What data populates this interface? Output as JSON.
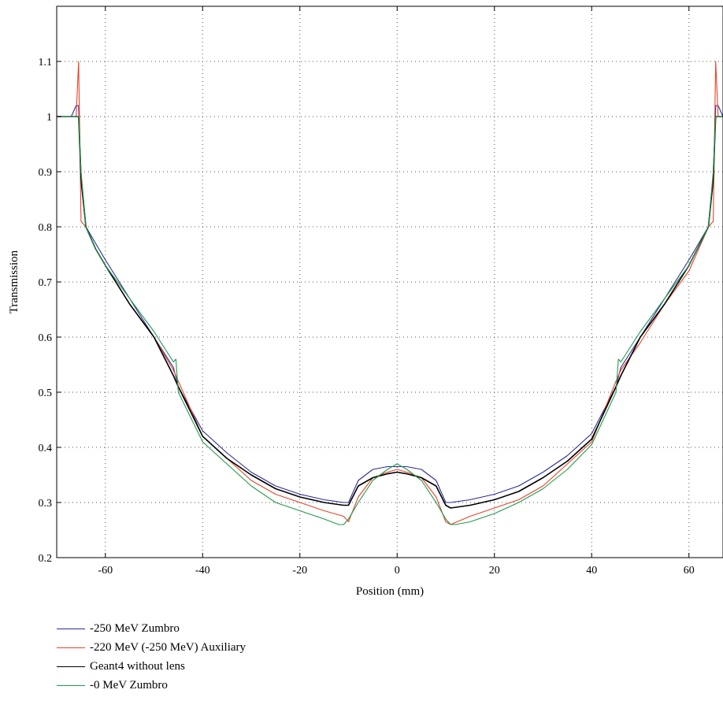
{
  "chart_data": {
    "type": "line",
    "title": "",
    "xlabel": "Position (mm)",
    "ylabel": "Transmission",
    "xlim": [
      -70,
      67
    ],
    "ylim": [
      0.2,
      1.2
    ],
    "xticks": [
      -60,
      -40,
      -20,
      0,
      20,
      40,
      60
    ],
    "xtick_labels": [
      "-60",
      "-40",
      "-20",
      "0",
      "20",
      "40",
      "60"
    ],
    "yticks": [
      0.2,
      0.3,
      0.4,
      0.5,
      0.6,
      0.7,
      0.8,
      0.9,
      1.0,
      1.1
    ],
    "ytick_labels": [
      "0.2",
      "0.3",
      "0.4",
      "0.5",
      "0.6",
      "0.7",
      "0.8",
      "0.9",
      "1",
      "1.1"
    ],
    "grid": true,
    "legend_position": "bottom",
    "series": [
      {
        "name": "-250 MeV Zumbro",
        "color": "#2b2b9a",
        "x": [
          -70,
          -67,
          -66,
          -65.5,
          -65,
          -64,
          -62,
          -60,
          -55,
          -50,
          -46,
          -45,
          -40,
          -35,
          -30,
          -25,
          -20,
          -15,
          -11,
          -10,
          -8,
          -5,
          -2,
          0,
          2,
          5,
          8,
          10,
          11,
          15,
          20,
          25,
          30,
          35,
          40,
          45,
          46,
          50,
          55,
          60,
          64,
          65,
          65.5,
          66,
          67
        ],
        "y": [
          1.0,
          1.0,
          1.02,
          1.02,
          0.88,
          0.8,
          0.77,
          0.74,
          0.67,
          0.6,
          0.545,
          0.51,
          0.43,
          0.39,
          0.355,
          0.33,
          0.315,
          0.305,
          0.3,
          0.3,
          0.34,
          0.36,
          0.365,
          0.365,
          0.365,
          0.36,
          0.34,
          0.3,
          0.3,
          0.305,
          0.315,
          0.33,
          0.355,
          0.385,
          0.425,
          0.51,
          0.545,
          0.6,
          0.67,
          0.74,
          0.8,
          0.88,
          1.02,
          1.02,
          1.0
        ]
      },
      {
        "name": "-220 MeV (-250 MeV) Auxiliary",
        "color": "#e8432a",
        "x": [
          -70,
          -67,
          -66,
          -65.5,
          -65,
          -64,
          -62,
          -60,
          -55,
          -50,
          -46,
          -45,
          -40,
          -35,
          -30,
          -25,
          -20,
          -15,
          -11,
          -10,
          -8,
          -5,
          -2,
          0,
          2,
          5,
          8,
          10,
          11,
          15,
          20,
          25,
          30,
          35,
          40,
          45,
          46,
          50,
          55,
          60,
          64,
          65,
          65.5,
          66,
          67
        ],
        "y": [
          1.0,
          1.0,
          1.0,
          1.1,
          0.81,
          0.8,
          0.76,
          0.73,
          0.66,
          0.6,
          0.54,
          0.52,
          0.42,
          0.38,
          0.34,
          0.315,
          0.3,
          0.285,
          0.275,
          0.265,
          0.31,
          0.345,
          0.355,
          0.36,
          0.355,
          0.345,
          0.31,
          0.265,
          0.26,
          0.275,
          0.29,
          0.305,
          0.33,
          0.37,
          0.41,
          0.52,
          0.54,
          0.59,
          0.66,
          0.72,
          0.8,
          0.81,
          1.1,
          1.0,
          1.0
        ]
      },
      {
        "name": "Geant4 without lens",
        "color": "#000000",
        "x": [
          -70,
          -67,
          -65.5,
          -65,
          -64,
          -62,
          -60,
          -55,
          -50,
          -46,
          -45,
          -40,
          -35,
          -30,
          -25,
          -20,
          -15,
          -11,
          -10,
          -8,
          -5,
          -2,
          0,
          2,
          5,
          8,
          10,
          11,
          15,
          20,
          25,
          30,
          35,
          40,
          45,
          46,
          50,
          55,
          60,
          64,
          65,
          65.5,
          67
        ],
        "y": [
          1.0,
          1.0,
          1.0,
          0.89,
          0.8,
          0.76,
          0.73,
          0.66,
          0.6,
          0.53,
          0.51,
          0.42,
          0.38,
          0.35,
          0.325,
          0.31,
          0.3,
          0.295,
          0.295,
          0.33,
          0.345,
          0.352,
          0.355,
          0.352,
          0.345,
          0.33,
          0.295,
          0.29,
          0.295,
          0.305,
          0.32,
          0.345,
          0.375,
          0.415,
          0.51,
          0.53,
          0.6,
          0.66,
          0.73,
          0.8,
          0.89,
          1.0,
          1.0
        ]
      },
      {
        "name": "-0 MeV Zumbro",
        "color": "#1f9a4a",
        "x": [
          -70,
          -67,
          -65.5,
          -65,
          -64,
          -62,
          -60,
          -55,
          -50,
          -46,
          -45.5,
          -45,
          -40,
          -35,
          -30,
          -25,
          -20,
          -15,
          -12,
          -11,
          -10,
          -8,
          -5,
          -2,
          0,
          2,
          5,
          8,
          10,
          11,
          12,
          15,
          20,
          25,
          30,
          35,
          40,
          45,
          45.5,
          46,
          50,
          55,
          60,
          64,
          65,
          65.5,
          67
        ],
        "y": [
          1.0,
          1.0,
          1.0,
          0.9,
          0.8,
          0.76,
          0.73,
          0.67,
          0.61,
          0.555,
          0.56,
          0.5,
          0.41,
          0.37,
          0.33,
          0.3,
          0.285,
          0.27,
          0.26,
          0.26,
          0.27,
          0.3,
          0.34,
          0.36,
          0.37,
          0.36,
          0.34,
          0.3,
          0.27,
          0.26,
          0.26,
          0.265,
          0.28,
          0.3,
          0.325,
          0.36,
          0.405,
          0.5,
          0.56,
          0.555,
          0.61,
          0.67,
          0.73,
          0.8,
          0.9,
          1.0,
          1.0
        ]
      }
    ]
  }
}
